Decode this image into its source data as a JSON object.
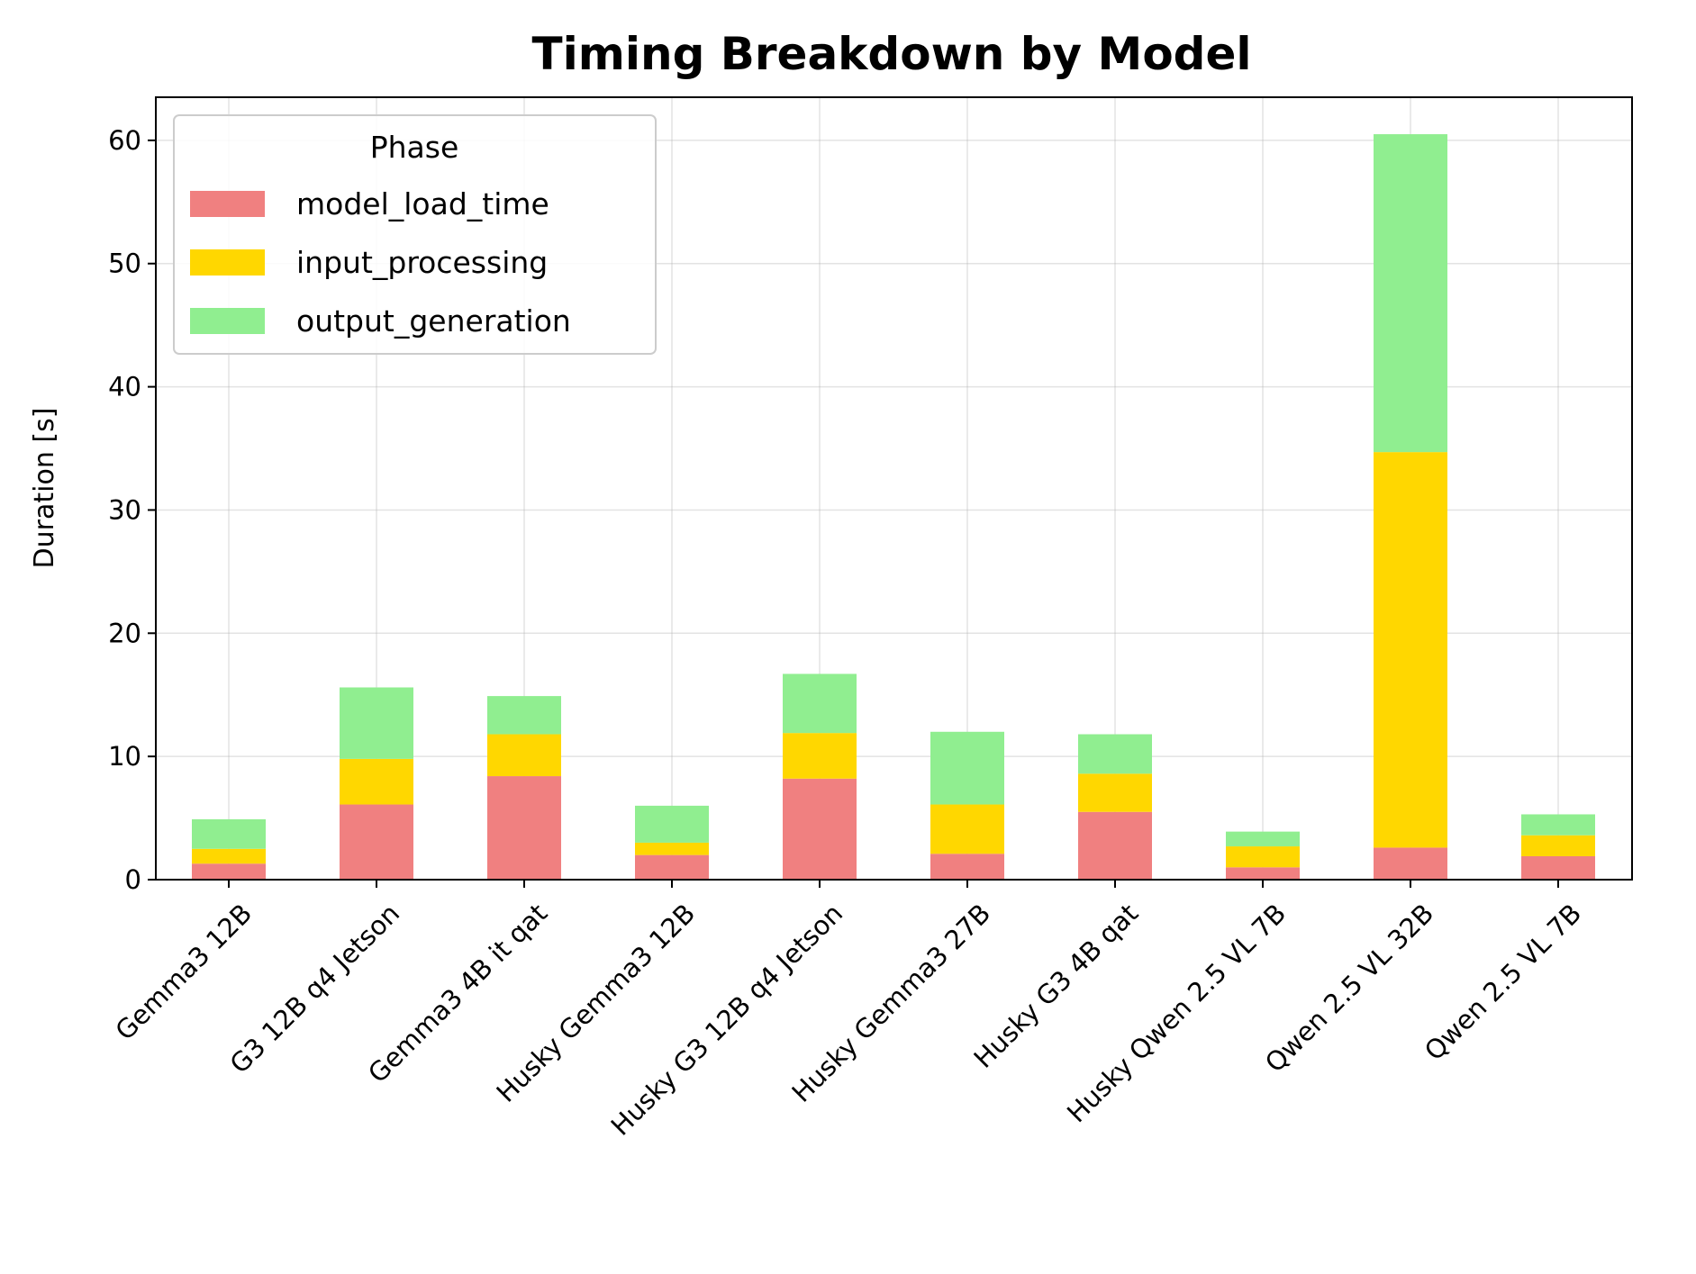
{
  "chart_data": {
    "type": "bar",
    "stacked": true,
    "title": "Timing Breakdown by Model",
    "xlabel": "",
    "ylabel": "Duration [s]",
    "ylim": [
      0,
      63.5
    ],
    "yticks": [
      0,
      10,
      20,
      30,
      40,
      50,
      60
    ],
    "grid": true,
    "legend": {
      "title": "Phase",
      "placement": "top-left"
    },
    "categories": [
      "Gemma3 12B",
      "G3 12B q4 Jetson",
      "Gemma3 4B it qat",
      "Husky Gemma3 12B",
      "Husky G3 12B q4 Jetson",
      "Husky Gemma3 27B",
      "Husky G3 4B qat",
      "Husky Qwen 2.5 VL 7B",
      "Qwen 2.5 VL 32B",
      "Qwen 2.5 VL 7B"
    ],
    "series": [
      {
        "name": "model_load_time",
        "color": "#f08080",
        "values": [
          1.3,
          6.1,
          8.4,
          2.0,
          8.2,
          2.1,
          5.5,
          1.0,
          2.6,
          1.9
        ]
      },
      {
        "name": "input_processing",
        "color": "#ffd700",
        "values": [
          1.2,
          3.7,
          3.4,
          1.0,
          3.7,
          4.0,
          3.1,
          1.7,
          32.1,
          1.7
        ]
      },
      {
        "name": "output_generation",
        "color": "#90ee90",
        "values": [
          2.4,
          5.8,
          3.1,
          3.0,
          4.8,
          5.9,
          3.2,
          1.2,
          25.8,
          1.7
        ]
      }
    ]
  }
}
